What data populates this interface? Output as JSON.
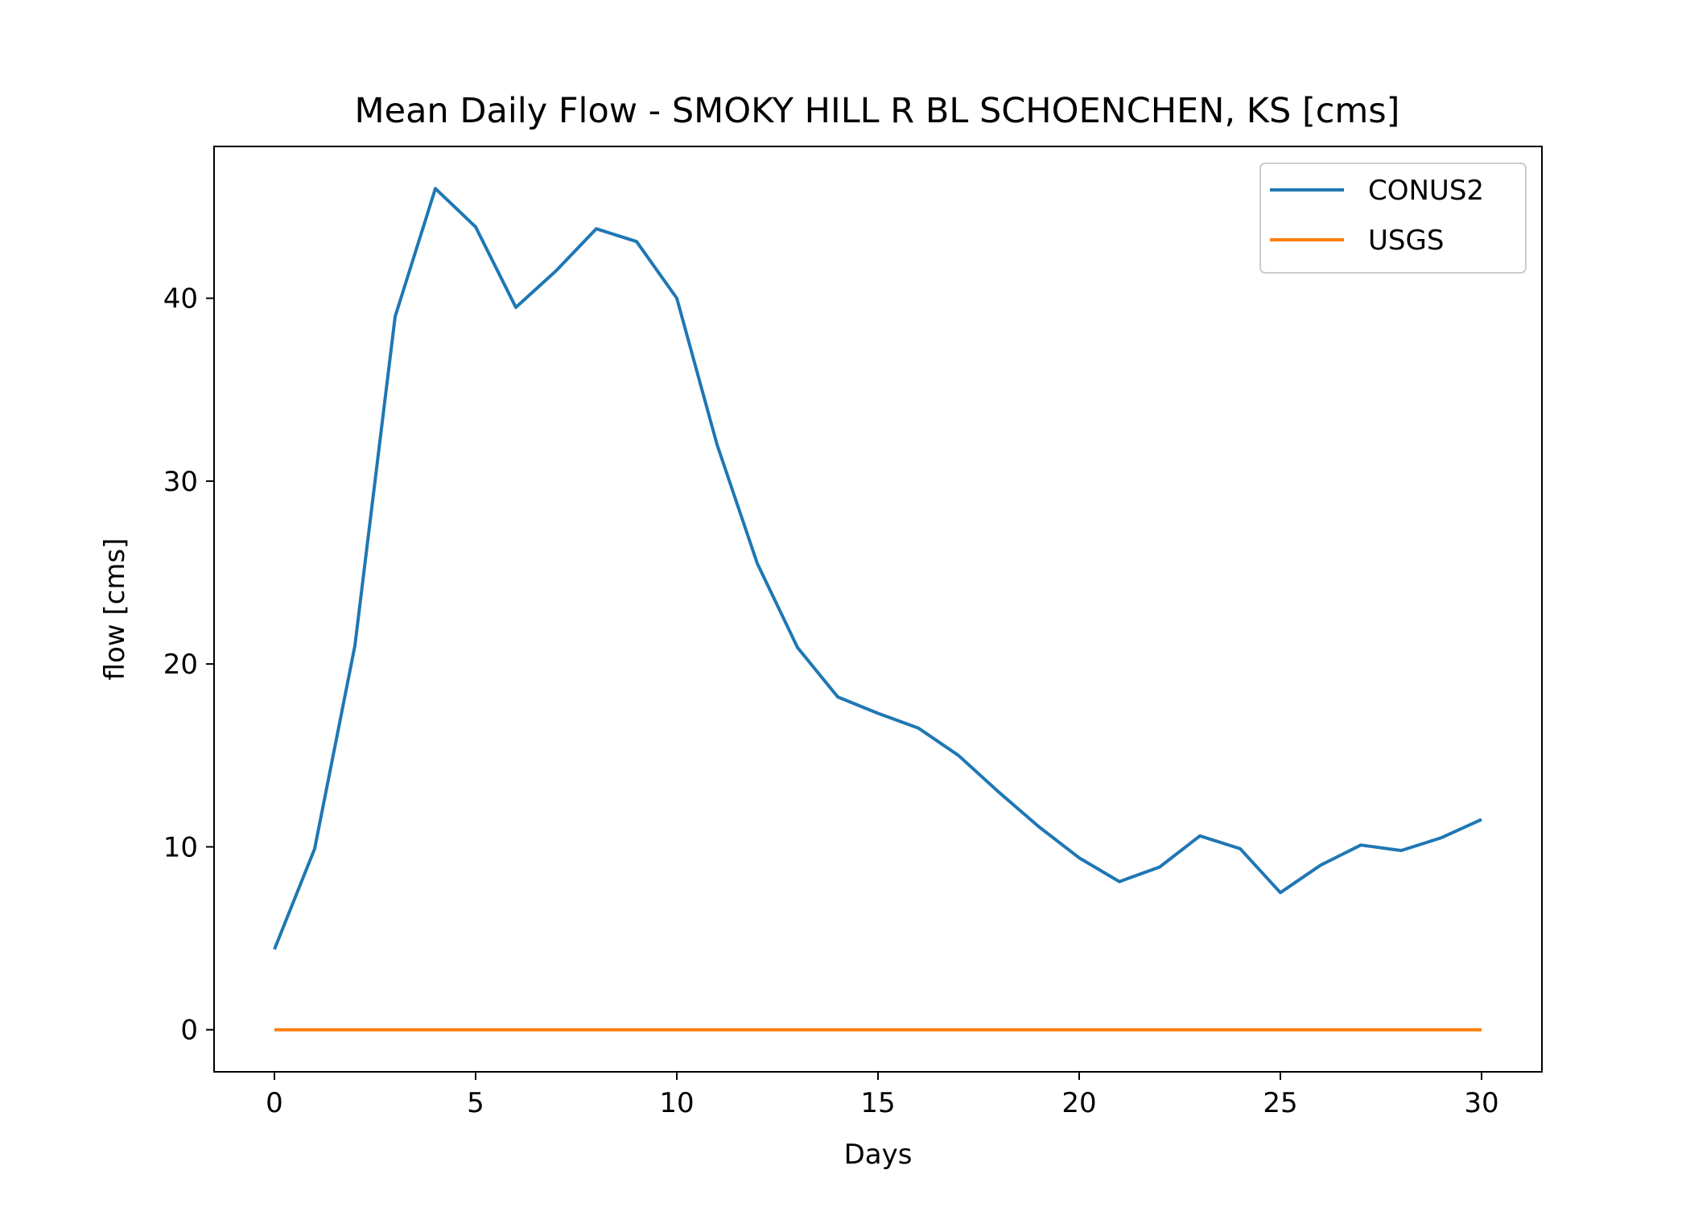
{
  "chart_data": {
    "type": "line",
    "title": "Mean Daily Flow - SMOKY HILL R BL SCHOENCHEN, KS [cms]",
    "xlabel": "Days",
    "ylabel": "flow [cms]",
    "xlim": [
      -1.5,
      31.5
    ],
    "ylim": [
      -2.3,
      48.3
    ],
    "xticks": [
      0,
      5,
      10,
      15,
      20,
      25,
      30
    ],
    "yticks": [
      0,
      10,
      20,
      30,
      40
    ],
    "grid": false,
    "legend_position": "top-right",
    "x": [
      0,
      1,
      2,
      3,
      4,
      5,
      6,
      7,
      8,
      9,
      10,
      11,
      12,
      13,
      14,
      15,
      16,
      17,
      18,
      19,
      20,
      21,
      22,
      23,
      24,
      25,
      26,
      27,
      28,
      29,
      30
    ],
    "series": [
      {
        "name": "CONUS2",
        "color": "#1f77b4",
        "values": [
          4.4,
          9.9,
          21.0,
          39.0,
          46.0,
          43.9,
          39.5,
          41.5,
          43.8,
          43.1,
          40.0,
          32.0,
          25.5,
          20.9,
          18.2,
          17.3,
          16.5,
          15.0,
          13.0,
          11.1,
          9.4,
          8.1,
          8.9,
          10.6,
          9.9,
          7.5,
          9.0,
          10.1,
          9.8,
          10.5,
          11.5
        ]
      },
      {
        "name": "USGS",
        "color": "#ff7f0e",
        "values": [
          0,
          0,
          0,
          0,
          0,
          0,
          0,
          0,
          0,
          0,
          0,
          0,
          0,
          0,
          0,
          0,
          0,
          0,
          0,
          0,
          0,
          0,
          0,
          0,
          0,
          0,
          0,
          0,
          0,
          0,
          0
        ]
      }
    ]
  }
}
